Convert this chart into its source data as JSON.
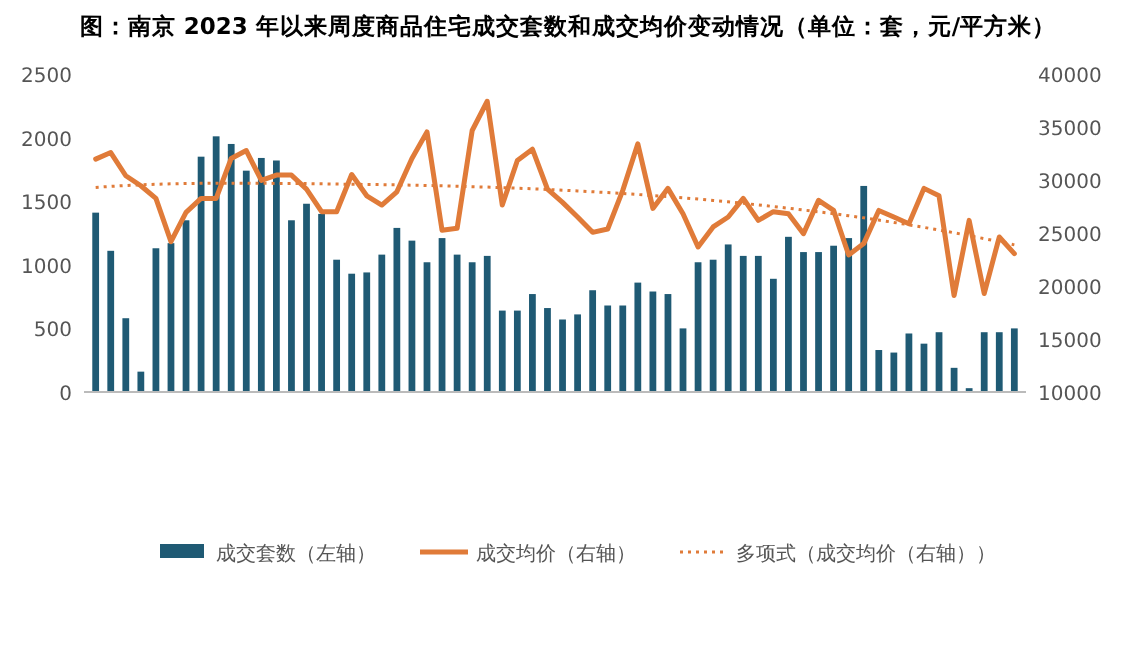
{
  "chart_data": {
    "type": "bar",
    "title": "图：南京 2023 年以来周度商品住宅成交套数和成交均价变动情况（单位：套，元/平方米）",
    "categories": [
      null,
      null,
      null,
      null,
      null,
      null,
      null,
      null,
      null,
      null,
      null,
      null,
      null,
      null,
      null,
      null,
      null,
      null,
      null,
      null,
      null,
      null,
      null,
      null,
      null,
      null,
      null,
      null,
      null,
      null,
      null,
      null,
      null,
      null,
      null,
      null,
      null,
      null,
      null,
      null,
      null,
      null,
      null,
      null,
      null,
      null,
      null,
      null,
      null,
      null,
      null,
      null,
      null,
      null,
      null,
      null,
      null,
      null,
      null,
      null,
      null,
      null
    ],
    "series": [
      {
        "name": "成交套数（左轴）",
        "color": "#1f5a74",
        "values": [
          1410,
          1110,
          580,
          160,
          1130,
          1170,
          1350,
          1850,
          2010,
          1950,
          1740,
          1840,
          1820,
          1350,
          1480,
          1400,
          1040,
          930,
          940,
          1080,
          1290,
          1190,
          1020,
          1210,
          1080,
          1020,
          1070,
          640,
          640,
          770,
          660,
          570,
          610,
          800,
          680,
          680,
          860,
          790,
          770,
          500,
          1020,
          1040,
          1160,
          1070,
          1070,
          890,
          1220,
          1100,
          1100,
          1150,
          1210,
          1620,
          330,
          310,
          460,
          380,
          470,
          190,
          30,
          470,
          470,
          500
        ]
      },
      {
        "name": "成交均价（右轴）",
        "type": "line",
        "axis": "y2",
        "color": "#e07b39",
        "line_style": "solid",
        "values": [
          31970,
          32590,
          30400,
          29460,
          28260,
          24180,
          26950,
          28260,
          28260,
          32030,
          32780,
          29960,
          30460,
          30460,
          29140,
          27010,
          27010,
          30520,
          28510,
          27640,
          28890,
          32030,
          34540,
          25250,
          25440,
          34670,
          37430,
          27640,
          31840,
          32910,
          29140,
          27890,
          26510,
          25060,
          25380,
          29020,
          33410,
          27320,
          29210,
          26820,
          23680,
          25570,
          26510,
          28260,
          26190,
          27010,
          26820,
          24940,
          28080,
          27130,
          22930,
          24000,
          27130,
          26510,
          25880,
          29210,
          28510,
          19100,
          26190,
          19290,
          24620,
          23050
        ]
      },
      {
        "name": "多项式（成交均价（右轴））",
        "type": "line",
        "axis": "y2",
        "color": "#e07b39",
        "line_style": "dotted",
        "values": [
          29300,
          29400,
          29480,
          29550,
          29600,
          29640,
          29670,
          29690,
          29700,
          29700,
          29700,
          29690,
          29680,
          29670,
          29660,
          29640,
          29620,
          29600,
          29580,
          29560,
          29540,
          29510,
          29480,
          29450,
          29410,
          29370,
          29330,
          29280,
          29230,
          29170,
          29110,
          29040,
          28970,
          28890,
          28810,
          28720,
          28630,
          28530,
          28430,
          28320,
          28200,
          28070,
          27940,
          27800,
          27650,
          27500,
          27340,
          27170,
          27000,
          26820,
          26630,
          26430,
          26220,
          26000,
          25770,
          25530,
          25280,
          25020,
          24750,
          24470,
          24180,
          23880
        ]
      }
    ],
    "ylim": [
      0,
      2500
    ],
    "yticks": [
      0,
      500,
      1000,
      1500,
      2000,
      2500
    ],
    "y2lim": [
      10000,
      40000
    ],
    "y2ticks": [
      10000,
      15000,
      20000,
      25000,
      30000,
      35000,
      40000
    ],
    "legend": "bottom",
    "grid": false
  }
}
